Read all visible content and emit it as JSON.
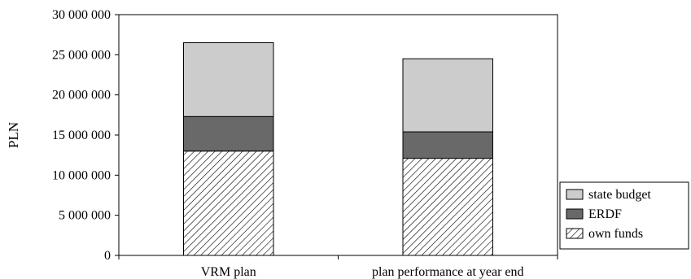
{
  "chart_data": {
    "type": "bar",
    "stacked": true,
    "title": "",
    "xlabel": "",
    "ylabel": "PLN",
    "ylim": [
      0,
      30000000
    ],
    "yticks": [
      0,
      5000000,
      10000000,
      15000000,
      20000000,
      25000000,
      30000000
    ],
    "ytick_labels": [
      "0",
      "5 000 000",
      "10 000 000",
      "15 000 000",
      "20 000 000",
      "25 000 000",
      "30 000 000"
    ],
    "categories": [
      "VRM plan",
      "plan performance at year end"
    ],
    "series": [
      {
        "name": "own funds",
        "values": [
          13000000,
          12100000
        ],
        "color": "#ffffff",
        "pattern": "diagonal-hatch"
      },
      {
        "name": "ERDF",
        "values": [
          4300000,
          3300000
        ],
        "color": "#696969"
      },
      {
        "name": "state budget",
        "values": [
          9200000,
          9100000
        ],
        "color": "#cccccc"
      }
    ],
    "legend": {
      "position": "right",
      "order": [
        "state budget",
        "ERDF",
        "own funds"
      ]
    },
    "grid": false
  }
}
